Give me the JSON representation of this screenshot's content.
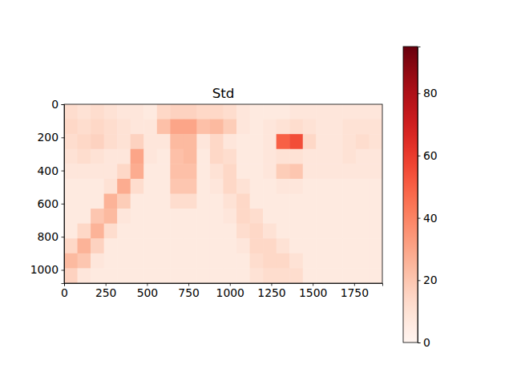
{
  "chart_data": {
    "type": "heatmap",
    "title": "Std",
    "xlim": [
      0,
      1920
    ],
    "ylim": [
      1080,
      0
    ],
    "xticks": [
      0,
      250,
      500,
      750,
      1000,
      1250,
      1500,
      1750
    ],
    "yticks": [
      0,
      200,
      400,
      600,
      800,
      1000
    ],
    "x_edges": [
      0,
      80,
      160,
      240,
      320,
      400,
      480,
      560,
      640,
      720,
      800,
      880,
      960,
      1040,
      1120,
      1200,
      1280,
      1360,
      1440,
      1520,
      1600,
      1680,
      1760,
      1840,
      1920
    ],
    "y_edges": [
      0,
      90,
      180,
      270,
      360,
      450,
      540,
      630,
      720,
      810,
      900,
      990,
      1080
    ],
    "cells": [
      [
        12,
        10,
        12,
        10,
        8,
        8,
        6,
        14,
        16,
        16,
        14,
        14,
        12,
        8,
        6,
        6,
        6,
        8,
        8,
        8,
        8,
        8,
        8,
        8
      ],
      [
        14,
        12,
        14,
        12,
        10,
        8,
        8,
        22,
        30,
        30,
        22,
        24,
        18,
        8,
        6,
        8,
        10,
        12,
        10,
        8,
        8,
        10,
        10,
        10
      ],
      [
        12,
        14,
        16,
        12,
        10,
        16,
        8,
        8,
        24,
        24,
        8,
        14,
        8,
        6,
        6,
        8,
        50,
        55,
        14,
        8,
        8,
        10,
        12,
        10
      ],
      [
        10,
        12,
        10,
        8,
        8,
        30,
        8,
        6,
        22,
        24,
        6,
        14,
        12,
        6,
        6,
        8,
        10,
        10,
        8,
        8,
        8,
        10,
        8,
        8
      ],
      [
        8,
        8,
        8,
        8,
        14,
        28,
        6,
        6,
        22,
        22,
        6,
        10,
        14,
        6,
        6,
        8,
        18,
        20,
        8,
        8,
        8,
        8,
        8,
        8
      ],
      [
        6,
        6,
        6,
        10,
        28,
        12,
        6,
        6,
        20,
        20,
        6,
        8,
        14,
        10,
        6,
        6,
        8,
        8,
        6,
        6,
        6,
        6,
        6,
        6
      ],
      [
        6,
        6,
        6,
        26,
        18,
        6,
        6,
        6,
        12,
        12,
        6,
        6,
        10,
        14,
        6,
        6,
        6,
        6,
        6,
        6,
        6,
        6,
        6,
        6
      ],
      [
        6,
        6,
        20,
        24,
        8,
        6,
        6,
        6,
        6,
        6,
        6,
        6,
        8,
        14,
        12,
        6,
        6,
        6,
        6,
        6,
        6,
        6,
        6,
        6
      ],
      [
        6,
        14,
        26,
        12,
        6,
        6,
        6,
        6,
        6,
        6,
        6,
        6,
        6,
        12,
        14,
        10,
        6,
        6,
        6,
        6,
        6,
        6,
        6,
        6
      ],
      [
        14,
        26,
        16,
        6,
        6,
        6,
        6,
        6,
        6,
        6,
        6,
        6,
        6,
        8,
        14,
        14,
        10,
        6,
        6,
        6,
        6,
        6,
        6,
        6
      ],
      [
        24,
        20,
        8,
        6,
        6,
        6,
        6,
        6,
        6,
        6,
        6,
        6,
        6,
        6,
        12,
        14,
        14,
        10,
        6,
        6,
        6,
        6,
        6,
        6
      ],
      [
        16,
        8,
        6,
        6,
        6,
        6,
        6,
        6,
        6,
        6,
        6,
        6,
        6,
        6,
        10,
        12,
        12,
        12,
        6,
        6,
        6,
        6,
        6,
        6
      ]
    ],
    "colorbar": {
      "range": [
        0,
        95
      ],
      "ticks": [
        0,
        20,
        40,
        60,
        80
      ]
    }
  }
}
